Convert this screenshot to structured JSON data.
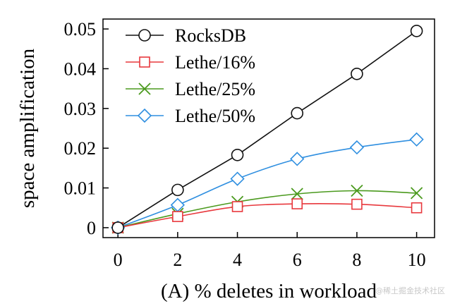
{
  "chart_data": {
    "type": "line",
    "title": "",
    "xlabel": "(A) % deletes in workload",
    "ylabel": "space amplification",
    "x": [
      0,
      2,
      4,
      6,
      8,
      10
    ],
    "xlim": [
      -0.5,
      10.6
    ],
    "ylim": [
      -0.0025,
      0.0525
    ],
    "xticks": [
      "0",
      "2",
      "4",
      "6",
      "8",
      "10"
    ],
    "yticks": [
      "0",
      "0.01",
      "0.02",
      "0.03",
      "0.04",
      "0.05"
    ],
    "ytick_values": [
      0,
      0.01,
      0.02,
      0.03,
      0.04,
      0.05
    ],
    "grid": false,
    "legend_position": "top-left",
    "series": [
      {
        "name": "RocksDB",
        "color": "#111111",
        "marker": "circle",
        "values": [
          0,
          0.0095,
          0.0183,
          0.0288,
          0.0387,
          0.0495
        ]
      },
      {
        "name": "Lethe/16%",
        "color": "#e8383d",
        "marker": "square",
        "values": [
          0,
          0.0028,
          0.0053,
          0.006,
          0.0059,
          0.005
        ]
      },
      {
        "name": "Lethe/25%",
        "color": "#4b9a1e",
        "marker": "x",
        "values": [
          0,
          0.0035,
          0.0065,
          0.0085,
          0.0093,
          0.0087
        ]
      },
      {
        "name": "Lethe/50%",
        "color": "#2f8fe0",
        "marker": "diamond",
        "values": [
          0,
          0.0057,
          0.0123,
          0.0173,
          0.0202,
          0.0222
        ]
      }
    ]
  },
  "watermark": "@稀土掘金技术社区"
}
